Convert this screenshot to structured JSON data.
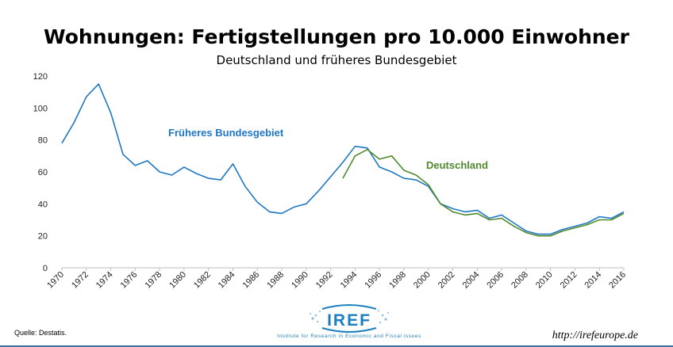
{
  "header": {
    "title": "Wohnungen: Fertigstellungen pro 10.000 Einwohner",
    "subtitle": "Deutschland und früheres Bundesgebiet"
  },
  "footer": {
    "source": "Quelle: Destatis.",
    "url": "http://irefeurope.de",
    "logo_text": "IREF",
    "logo_subtext": "Institute for Research in Economic and Fiscal issues"
  },
  "colors": {
    "west": "#1f77c4",
    "germany": "#4f8a2c"
  },
  "chart_data": {
    "type": "line",
    "title": "Wohnungen: Fertigstellungen pro 10.000 Einwohner",
    "subtitle": "Deutschland und früheres Bundesgebiet",
    "xlabel": "",
    "ylabel": "",
    "ylim": [
      0,
      120
    ],
    "yticks": [
      0,
      20,
      40,
      60,
      80,
      100,
      120
    ],
    "xlim": [
      1970,
      2016
    ],
    "xticks": [
      1970,
      1972,
      1974,
      1976,
      1978,
      1980,
      1982,
      1984,
      1986,
      1988,
      1990,
      1992,
      1994,
      1996,
      1998,
      2000,
      2002,
      2004,
      2006,
      2008,
      2010,
      2012,
      2014,
      2016
    ],
    "grid": false,
    "legend": "inline labels",
    "series": [
      {
        "name": "Früheres Bundesgebiet",
        "x": [
          1970,
          1971,
          1972,
          1973,
          1974,
          1975,
          1976,
          1977,
          1978,
          1979,
          1980,
          1981,
          1982,
          1983,
          1984,
          1985,
          1986,
          1987,
          1988,
          1989,
          1990,
          1991,
          1992,
          1993,
          1994,
          1995,
          1996,
          1997,
          1998,
          1999,
          2000,
          2001,
          2002,
          2003,
          2004,
          2005,
          2006,
          2007,
          2008,
          2009,
          2010,
          2011,
          2012,
          2013,
          2014,
          2015,
          2016
        ],
        "values": [
          78,
          91,
          107,
          115,
          97,
          71,
          64,
          67,
          60,
          58,
          63,
          59,
          56,
          55,
          65,
          51,
          41,
          35,
          34,
          38,
          40,
          48,
          57,
          66,
          76,
          75,
          63,
          60,
          56,
          55,
          51,
          40,
          37,
          35,
          36,
          31,
          33,
          28,
          23,
          21,
          21,
          24,
          26,
          28,
          32,
          31,
          35
        ]
      },
      {
        "name": "Deutschland",
        "x": [
          1993,
          1994,
          1995,
          1996,
          1997,
          1998,
          1999,
          2000,
          2001,
          2002,
          2003,
          2004,
          2005,
          2006,
          2007,
          2008,
          2009,
          2010,
          2011,
          2012,
          2013,
          2014,
          2015,
          2016
        ],
        "values": [
          56,
          70,
          74,
          68,
          70,
          61,
          58,
          52,
          40,
          35,
          33,
          34,
          30,
          31,
          26,
          22,
          20,
          20,
          23,
          25,
          27,
          30,
          30,
          34
        ]
      }
    ]
  }
}
